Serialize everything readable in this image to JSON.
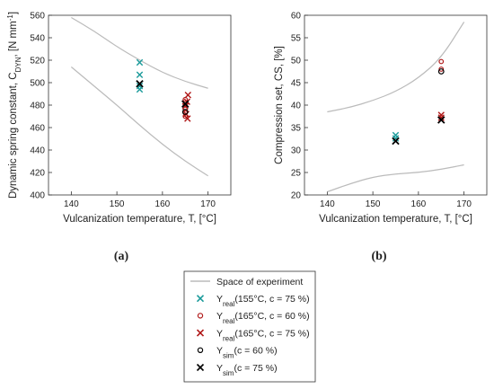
{
  "panels": [
    {
      "id": "a",
      "caption": "(a)",
      "ylabel_main": "Dynamic spring constant, C",
      "ylabel_sub": "DYN",
      "ylabel_tail": ", [N mm",
      "ylabel_sup": "-1",
      "ylabel_end": "]",
      "xlabel": "Vulcanization temperature, T, [°C]"
    },
    {
      "id": "b",
      "caption": "(b)",
      "ylabel": "Compression set, CS, [%]",
      "xlabel": "Vulcanization temperature, T, [°C]"
    }
  ],
  "legend": {
    "items": [
      {
        "main": "Space of experiment"
      },
      {
        "main": "Y",
        "sub": "real",
        "tail": "(155°C, c = 75 %)"
      },
      {
        "main": "Y",
        "sub": "real",
        "tail": "(165°C, c = 60 %)"
      },
      {
        "main": "Y",
        "sub": "real",
        "tail": "(165°C, c = 75 %)"
      },
      {
        "main": "Y",
        "sub": "sim",
        "tail": "(c = 60 %)"
      },
      {
        "main": "Y",
        "sub": "sim",
        "tail": "(c = 75 %)"
      }
    ]
  },
  "colors": {
    "space": "#bbbbbb",
    "real_155_75": "#1a9a9a",
    "real_165_60": "#b01818",
    "real_165_75": "#b01818",
    "sim": "#000000"
  },
  "chart_data": [
    {
      "panel": "a",
      "type": "scatter",
      "xlabel": "Vulcanization temperature, T, [°C]",
      "ylabel": "Dynamic spring constant, CDYN, [N mm-1]",
      "xlim": [
        135,
        175
      ],
      "ylim": [
        400,
        560
      ],
      "xticks": [
        140,
        150,
        160,
        170
      ],
      "yticks": [
        400,
        420,
        440,
        460,
        480,
        500,
        520,
        540,
        560
      ],
      "bounds": {
        "upper": [
          [
            140,
            558
          ],
          [
            145,
            546
          ],
          [
            150,
            532
          ],
          [
            155,
            520
          ],
          [
            160,
            509
          ],
          [
            165,
            501
          ],
          [
            170,
            495
          ]
        ],
        "lower": [
          [
            140,
            514
          ],
          [
            145,
            497
          ],
          [
            150,
            480
          ],
          [
            155,
            462
          ],
          [
            160,
            445
          ],
          [
            165,
            430
          ],
          [
            170,
            417
          ]
        ]
      },
      "series": [
        {
          "key": "real_155_75",
          "marker": "x",
          "points": [
            [
              155,
              518
            ],
            [
              155,
              507
            ],
            [
              155,
              497
            ],
            [
              155,
              494
            ]
          ]
        },
        {
          "key": "real_165_60",
          "marker": "o",
          "points": [
            [
              165,
              485
            ],
            [
              165,
              480
            ],
            [
              165,
              477
            ],
            [
              165,
              473
            ],
            [
              165,
              470
            ]
          ]
        },
        {
          "key": "real_165_75",
          "marker": "x",
          "points": [
            [
              165.6,
              489
            ],
            [
              165.4,
              483
            ],
            [
              165,
              479
            ],
            [
              165.2,
              472
            ],
            [
              165.5,
              468
            ]
          ]
        },
        {
          "key": "sim_60",
          "marker": "o",
          "points": [
            [
              165,
              474
            ]
          ]
        },
        {
          "key": "sim_75",
          "marker": "x",
          "points": [
            [
              155,
              499
            ],
            [
              165,
              481
            ]
          ]
        }
      ]
    },
    {
      "panel": "b",
      "type": "scatter",
      "xlabel": "Vulcanization temperature, T, [°C]",
      "ylabel": "Compression set, CS, [%]",
      "xlim": [
        135,
        175
      ],
      "ylim": [
        20,
        60
      ],
      "xticks": [
        140,
        150,
        160,
        170
      ],
      "yticks": [
        20,
        25,
        30,
        35,
        40,
        45,
        50,
        55,
        60
      ],
      "bounds": {
        "upper": [
          [
            140,
            38.5
          ],
          [
            145,
            39.5
          ],
          [
            150,
            41
          ],
          [
            155,
            43
          ],
          [
            160,
            46
          ],
          [
            165,
            50.5
          ],
          [
            170,
            58.5
          ]
        ],
        "lower": [
          [
            140,
            20.7
          ],
          [
            145,
            22.5
          ],
          [
            150,
            24
          ],
          [
            155,
            24.7
          ],
          [
            160,
            25
          ],
          [
            165,
            25.7
          ],
          [
            170,
            26.7
          ]
        ]
      },
      "series": [
        {
          "key": "real_155_75",
          "marker": "x",
          "points": [
            [
              155,
              33.3
            ],
            [
              155,
              32.6
            ]
          ]
        },
        {
          "key": "real_165_60",
          "marker": "o",
          "points": [
            [
              165,
              49.7
            ],
            [
              165,
              48.0
            ]
          ]
        },
        {
          "key": "real_165_75",
          "marker": "x",
          "points": [
            [
              165,
              37.8
            ],
            [
              165,
              37.2
            ]
          ]
        },
        {
          "key": "sim_60",
          "marker": "o",
          "points": [
            [
              165,
              47.5
            ]
          ]
        },
        {
          "key": "sim_75",
          "marker": "x",
          "points": [
            [
              155,
              32.0
            ],
            [
              165,
              36.7
            ]
          ]
        }
      ]
    }
  ]
}
